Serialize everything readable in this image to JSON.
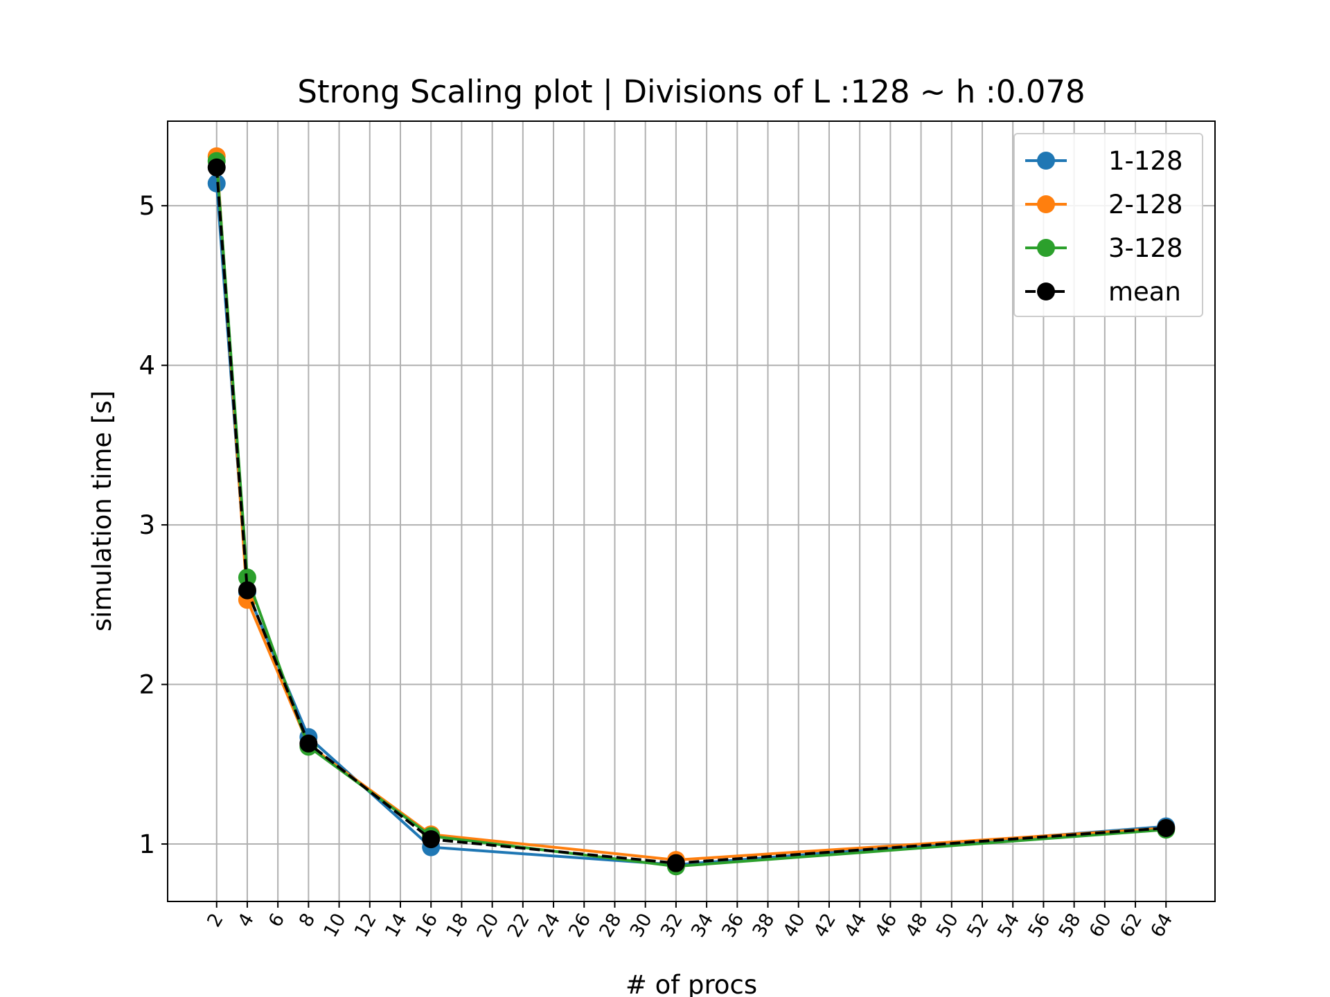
{
  "chart_data": {
    "type": "line",
    "title": "Strong Scaling plot | Divisions of L :128 ~ h :0.078",
    "xlabel": "# of procs",
    "ylabel": "simulation time [s]",
    "xlim": [
      -1.2,
      67.2
    ],
    "ylim": [
      0.64,
      5.53
    ],
    "x_ticks": [
      2,
      4,
      6,
      8,
      10,
      12,
      14,
      16,
      18,
      20,
      22,
      24,
      26,
      28,
      30,
      32,
      34,
      36,
      38,
      40,
      42,
      44,
      46,
      48,
      50,
      52,
      54,
      56,
      58,
      60,
      62,
      64
    ],
    "x_tick_labels": [
      "2",
      "4",
      "6",
      "8",
      "10",
      "12",
      "14",
      "16",
      "18",
      "20",
      "22",
      "24",
      "26",
      "28",
      "30",
      "32",
      "34",
      "36",
      "38",
      "40",
      "42",
      "44",
      "46",
      "48",
      "50",
      "52",
      "54",
      "56",
      "58",
      "60",
      "62",
      "64"
    ],
    "y_ticks": [
      1,
      2,
      3,
      4,
      5
    ],
    "y_tick_labels": [
      "1",
      "2",
      "3",
      "4",
      "5"
    ],
    "grid": true,
    "legend_position": "top-right",
    "x": [
      2,
      4,
      8,
      16,
      32,
      64
    ],
    "series": [
      {
        "name": "1-128",
        "color": "#1f77b4",
        "style": "solid",
        "values": [
          5.14,
          2.58,
          1.67,
          0.98,
          0.87,
          1.11
        ]
      },
      {
        "name": "2-128",
        "color": "#ff7f0e",
        "style": "solid",
        "values": [
          5.31,
          2.53,
          1.62,
          1.06,
          0.9,
          1.1
        ]
      },
      {
        "name": "3-128",
        "color": "#2ca02c",
        "style": "solid",
        "values": [
          5.28,
          2.67,
          1.61,
          1.05,
          0.86,
          1.09
        ]
      },
      {
        "name": "mean",
        "color": "#000000",
        "style": "dashed",
        "values": [
          5.24,
          2.59,
          1.63,
          1.03,
          0.88,
          1.1
        ]
      }
    ]
  }
}
